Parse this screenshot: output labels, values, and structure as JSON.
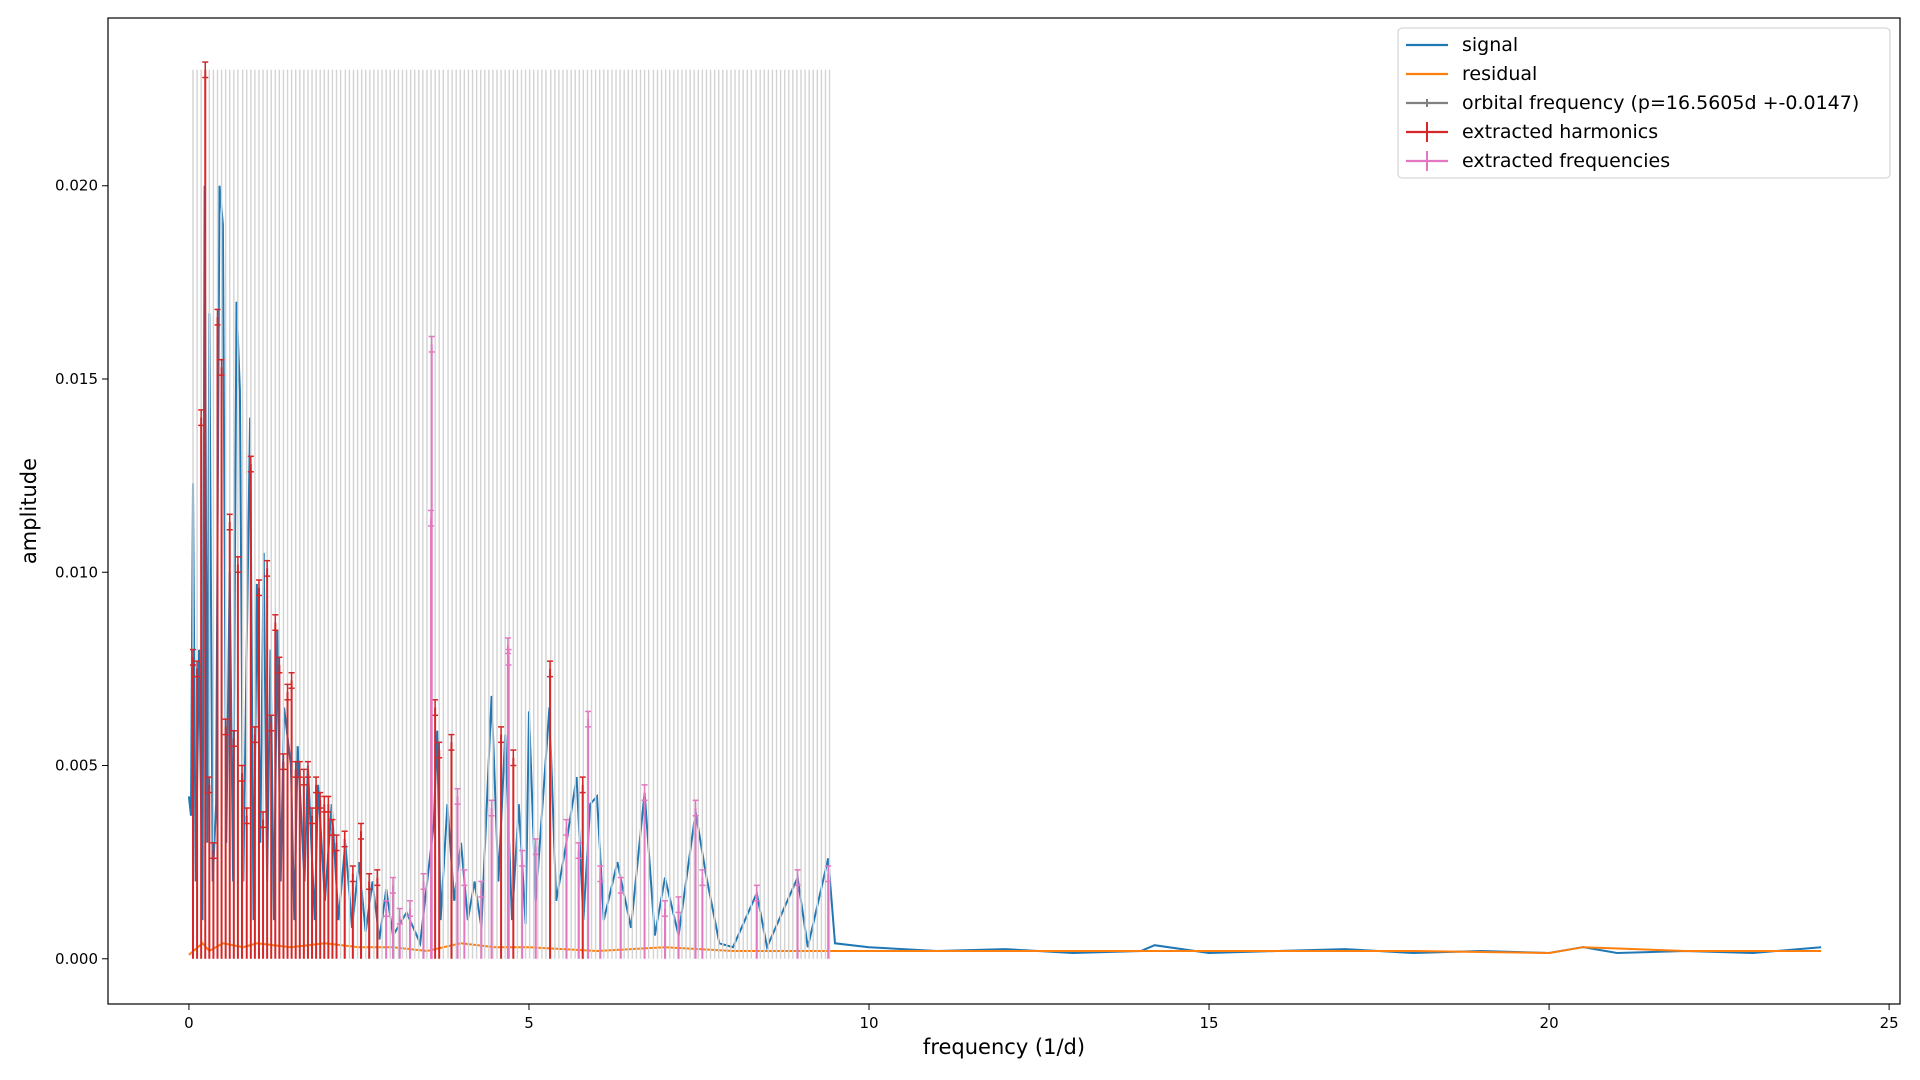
{
  "chart_data": {
    "type": "line",
    "xlabel": "frequency (1/d)",
    "ylabel": "amplitude",
    "xlim": [
      -1.19,
      25.16
    ],
    "ylim": [
      -0.00117,
      0.02434
    ],
    "xticks": [
      0,
      5,
      10,
      15,
      20,
      25
    ],
    "yticks": [
      {
        "value": 0,
        "label": "0.000"
      },
      {
        "value": 0.005,
        "label": "0.005"
      },
      {
        "value": 0.01,
        "label": "0.010"
      },
      {
        "value": 0.015,
        "label": "0.015"
      },
      {
        "value": 0.02,
        "label": "0.020"
      }
    ],
    "legend": "upper right",
    "series": [
      {
        "name": "signal",
        "color": "#1f77b4",
        "kind": "line",
        "x": [
          0,
          0.03,
          0.06,
          0.1,
          0.15,
          0.2,
          0.23,
          0.27,
          0.3,
          0.35,
          0.4,
          0.45,
          0.5,
          0.55,
          0.6,
          0.65,
          0.7,
          0.75,
          0.8,
          0.85,
          0.9,
          0.95,
          1.0,
          1.05,
          1.1,
          1.15,
          1.2,
          1.25,
          1.3,
          1.35,
          1.4,
          1.5,
          1.55,
          1.6,
          1.7,
          1.75,
          1.85,
          1.9,
          2.0,
          2.1,
          2.2,
          2.3,
          2.4,
          2.5,
          2.6,
          2.7,
          2.8,
          2.9,
          3.0,
          3.2,
          3.4,
          3.6,
          3.65,
          3.7,
          3.8,
          3.9,
          4.0,
          4.1,
          4.2,
          4.3,
          4.45,
          4.55,
          4.65,
          4.75,
          4.85,
          4.95,
          5.0,
          5.1,
          5.3,
          5.4,
          5.55,
          5.7,
          5.8,
          5.9,
          6.0,
          6.1,
          6.3,
          6.5,
          6.7,
          6.85,
          7.0,
          7.2,
          7.45,
          7.6,
          7.8,
          8.0,
          8.35,
          8.5,
          8.95,
          9.1,
          9.4,
          9.5,
          10,
          11,
          12,
          13,
          14,
          14.2,
          15,
          16,
          17,
          18,
          19,
          20,
          20.5,
          21,
          22,
          23,
          24
        ],
        "values": [
          0.0042,
          0.0037,
          0.0123,
          0.002,
          0.008,
          0.001,
          0.02,
          0.003,
          0.0167,
          0.002,
          0.004,
          0.02,
          0.019,
          0.003,
          0.01,
          0.002,
          0.017,
          0.0147,
          0.002,
          0.008,
          0.014,
          0.001,
          0.0097,
          0.003,
          0.0105,
          0.002,
          0.008,
          0.001,
          0.0085,
          0.002,
          0.0065,
          0.005,
          0.001,
          0.0055,
          0.002,
          0.005,
          0.001,
          0.0045,
          0.0015,
          0.004,
          0.001,
          0.003,
          0.0008,
          0.0025,
          0.0007,
          0.002,
          0.0005,
          0.0018,
          0.0006,
          0.0012,
          0.0004,
          0.0035,
          0.0059,
          0.001,
          0.004,
          0.0015,
          0.003,
          0.001,
          0.002,
          0.0008,
          0.0068,
          0.002,
          0.0058,
          0.001,
          0.004,
          0.0009,
          0.0064,
          0.0015,
          0.0065,
          0.0015,
          0.003,
          0.0047,
          0.001,
          0.004,
          0.0042,
          0.001,
          0.0025,
          0.0008,
          0.0043,
          0.0006,
          0.0021,
          0.0006,
          0.0038,
          0.0022,
          0.0004,
          0.0003,
          0.0017,
          0.0003,
          0.0021,
          0.0003,
          0.0026,
          0.0004,
          0.0003,
          0.0002,
          0.00025,
          0.00015,
          0.0002,
          0.00035,
          0.00015,
          0.0002,
          0.00025,
          0.00015,
          0.0002,
          0.00015,
          0.0003,
          0.00015,
          0.0002,
          0.00015,
          0.0003
        ]
      },
      {
        "name": "residual",
        "color": "#ff7f0e",
        "kind": "line",
        "x": [
          0,
          0.2,
          0.3,
          0.5,
          0.8,
          1,
          1.5,
          2,
          2.5,
          3,
          3.5,
          4,
          4.5,
          5,
          6,
          7,
          8,
          9,
          10,
          12,
          14,
          16,
          18,
          20,
          20.5,
          22,
          24
        ],
        "values": [
          0.0001,
          0.0004,
          0.0002,
          0.0004,
          0.0003,
          0.0004,
          0.0003,
          0.0004,
          0.0003,
          0.0003,
          0.0002,
          0.0004,
          0.0003,
          0.0003,
          0.0002,
          0.0003,
          0.0002,
          0.0002,
          0.0002,
          0.0002,
          0.0002,
          0.0002,
          0.0002,
          0.00015,
          0.0003,
          0.0002,
          0.0002
        ]
      },
      {
        "name": "orbital frequency (p=16.5605d +-0.0147)",
        "color": "#d3d3d3",
        "kind": "vlines",
        "height": 0.023,
        "x": [
          0.06,
          0.12,
          0.18,
          0.24,
          0.3,
          0.36,
          0.42,
          0.48,
          0.54,
          0.6,
          0.66,
          0.72,
          0.79,
          0.85,
          0.91,
          0.97,
          1.03,
          1.09,
          1.15,
          1.21,
          1.27,
          1.33,
          1.39,
          1.45,
          1.51,
          1.57,
          1.63,
          1.69,
          1.75,
          1.81,
          1.87,
          1.93,
          1.99,
          2.05,
          2.11,
          2.17,
          2.23,
          2.3,
          2.36,
          2.42,
          2.48,
          2.54,
          2.6,
          2.66,
          2.72,
          2.78,
          2.84,
          2.9,
          2.96,
          3.02,
          3.08,
          3.14,
          3.2,
          3.26,
          3.32,
          3.38,
          3.44,
          3.5,
          3.56,
          3.62,
          3.68,
          3.74,
          3.81,
          3.87,
          3.93,
          3.99,
          4.05,
          4.11,
          4.17,
          4.23,
          4.29,
          4.35,
          4.41,
          4.47,
          4.53,
          4.59,
          4.65,
          4.71,
          4.77,
          4.83,
          4.89,
          4.95,
          5.01,
          5.07,
          5.13,
          5.19,
          5.25,
          5.32,
          5.38,
          5.44,
          5.5,
          5.56,
          5.62,
          5.68,
          5.74,
          5.8,
          5.86,
          5.92,
          5.98,
          6.04,
          6.1,
          6.16,
          6.22,
          6.28,
          6.34,
          6.4,
          6.46,
          6.52,
          6.58,
          6.64,
          6.7,
          6.76,
          6.83,
          6.89,
          6.95,
          7.01,
          7.07,
          7.13,
          7.19,
          7.25,
          7.31,
          7.37,
          7.43,
          7.49,
          7.55,
          7.61,
          7.67,
          7.73,
          7.79,
          7.85,
          7.91,
          7.97,
          8.03,
          8.09,
          8.15,
          8.21,
          8.27,
          8.34,
          8.4,
          8.46,
          8.52,
          8.58,
          8.64,
          8.7,
          8.76,
          8.82,
          8.88,
          8.94,
          9.0,
          9.06,
          9.12,
          9.18,
          9.24,
          9.3,
          9.36,
          9.42
        ]
      },
      {
        "name": "extracted harmonics",
        "color": "#d62728",
        "kind": "stems",
        "yerr": 0.0002,
        "x": [
          0.06,
          0.12,
          0.18,
          0.24,
          0.3,
          0.36,
          0.42,
          0.48,
          0.54,
          0.6,
          0.66,
          0.72,
          0.78,
          0.85,
          0.91,
          0.97,
          1.03,
          1.09,
          1.15,
          1.21,
          1.27,
          1.33,
          1.39,
          1.45,
          1.51,
          1.57,
          1.63,
          1.69,
          1.75,
          1.81,
          1.87,
          1.93,
          1.99,
          2.05,
          2.11,
          2.17,
          2.29,
          2.41,
          2.53,
          2.65,
          2.77,
          3.62,
          3.68,
          3.86,
          4.59,
          4.77,
          5.31,
          5.79
        ],
        "values": [
          0.0078,
          0.0075,
          0.014,
          0.023,
          0.0045,
          0.0028,
          0.0166,
          0.0153,
          0.006,
          0.0113,
          0.0057,
          0.0102,
          0.0048,
          0.0037,
          0.0128,
          0.0058,
          0.0096,
          0.0036,
          0.0101,
          0.0061,
          0.0087,
          0.0076,
          0.0051,
          0.0069,
          0.0072,
          0.0049,
          0.0049,
          0.0047,
          0.0049,
          0.0037,
          0.0045,
          0.0041,
          0.004,
          0.004,
          0.0034,
          0.003,
          0.0031,
          0.0022,
          0.0033,
          0.002,
          0.0021,
          0.0065,
          0.0054,
          0.0056,
          0.0058,
          0.0052,
          0.0075,
          0.0045
        ]
      },
      {
        "name": "extracted frequencies",
        "color": "#e377c2",
        "kind": "stems",
        "yerr": 0.0002,
        "x": [
          2.9,
          3.0,
          3.1,
          3.25,
          3.45,
          3.57,
          3.56,
          3.95,
          4.05,
          4.3,
          4.45,
          4.69,
          4.7,
          4.9,
          5.1,
          5.55,
          5.73,
          5.87,
          6.05,
          6.35,
          6.7,
          7.0,
          7.2,
          7.45,
          7.55,
          8.35,
          8.95,
          9.4
        ],
        "values": [
          0.0013,
          0.0019,
          0.0011,
          0.0013,
          0.002,
          0.0159,
          0.0114,
          0.0042,
          0.0021,
          0.0018,
          0.0039,
          0.0081,
          0.0078,
          0.0026,
          0.0029,
          0.0034,
          0.0028,
          0.0062,
          0.0022,
          0.0019,
          0.0043,
          0.0013,
          0.0014,
          0.0039,
          0.0021,
          0.0017,
          0.0021,
          0.0022
        ]
      }
    ]
  }
}
